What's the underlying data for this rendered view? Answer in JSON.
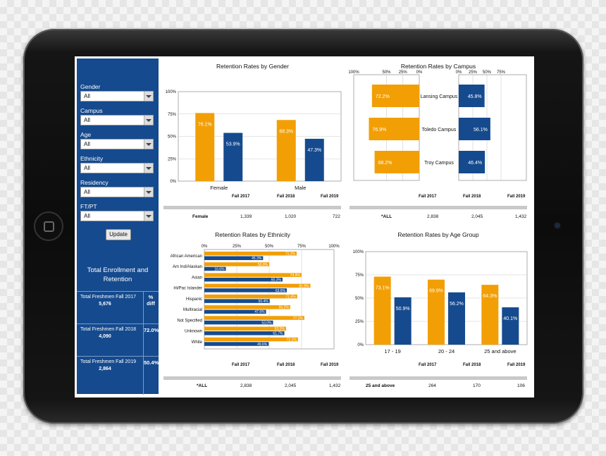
{
  "filters": [
    {
      "label": "Gender",
      "value": "All"
    },
    {
      "label": "Campus",
      "value": "All"
    },
    {
      "label": "Age",
      "value": "All"
    },
    {
      "label": "Ethnicity",
      "value": "All"
    },
    {
      "label": "Residency",
      "value": "All"
    },
    {
      "label": "FT/PT",
      "value": "All"
    }
  ],
  "update_label": "Update",
  "enrollment": {
    "title": "Total Enrollment and Retention",
    "pct_header": "% diff",
    "rows": [
      {
        "label": "Total Freshmen Fall 2017",
        "value": "5,676",
        "pct": ""
      },
      {
        "label": "Total Freshmen Fall 2018",
        "value": "4,090",
        "pct": "72.0%"
      },
      {
        "label": "Total Freshmen Fall 2019",
        "value": "2,864",
        "pct": "50.4%"
      }
    ]
  },
  "colors": {
    "fall2017": "#f29f05",
    "fall2018": "#154a8e",
    "sidebar": "#154a8e"
  },
  "years": [
    "Fall 2017",
    "Fall 2018",
    "Fall 2019"
  ],
  "panels": {
    "gender": {
      "title": "Retention Rates by Gender",
      "footer": {
        "label": "Female",
        "values": [
          "1,339",
          "1,020",
          "722"
        ]
      }
    },
    "campus": {
      "title": "Retention Rates by Campus",
      "footer": {
        "label": "*ALL",
        "values": [
          "2,838",
          "2,045",
          "1,432"
        ]
      }
    },
    "ethnicity": {
      "title": "Retention Rates by Ethnicity",
      "footer": {
        "label": "*ALL",
        "values": [
          "2,838",
          "2,045",
          "1,432"
        ]
      }
    },
    "age": {
      "title": "Retention Rates by Age Group",
      "footer": {
        "label": "25 and above",
        "values": [
          "264",
          "170",
          "106"
        ]
      }
    }
  },
  "chart_data": [
    {
      "type": "bar",
      "title": "Retention Rates by Gender",
      "categories": [
        "Female",
        "Male"
      ],
      "series": [
        {
          "values": [
            76.1,
            68.3
          ],
          "labels": [
            "76.1%",
            "68.3%"
          ]
        },
        {
          "values": [
            53.9,
            47.3
          ],
          "labels": [
            "53.9%",
            "47.3%"
          ]
        }
      ],
      "yticks": [
        "0%",
        "25%",
        "50%",
        "75%",
        "100%"
      ],
      "ylim": [
        0,
        100
      ]
    },
    {
      "type": "bar",
      "title": "Retention Rates by Campus",
      "orientation": "horizontal-mirrored",
      "categories": [
        "Lansing Campus",
        "Toledo Campus",
        "Troy Campus"
      ],
      "series": [
        {
          "values": [
            72.2,
            76.9,
            68.2
          ],
          "labels": [
            "72.2%",
            "76.9%",
            "68.2%"
          ]
        },
        {
          "values": [
            45.8,
            56.1,
            46.4
          ],
          "labels": [
            "45.8%",
            "56.1%",
            "46.4%"
          ]
        }
      ],
      "left_ticks": [
        "100%",
        "50%",
        "25%",
        "0%"
      ],
      "right_ticks": [
        "0%",
        "25%",
        "50%",
        "75%"
      ]
    },
    {
      "type": "bar",
      "title": "Retention Rates by Ethnicity",
      "orientation": "horizontal",
      "categories": [
        "African American",
        "Am Ind/Alaskan",
        "Asian",
        "Hi/Pac Islander",
        "Hispanic",
        "Multiracial",
        "Not Specified",
        "Unknown",
        "White"
      ],
      "series": [
        {
          "values": [
            71.2,
            50.0,
            74.9,
            81.8,
            71.6,
            66.2,
            77.1,
            63.0,
            72.2
          ],
          "labels": [
            "71.2%",
            "50.0%",
            "74.9%",
            "81.8%",
            "71.6%",
            "66.2%",
            "77.1%",
            "63.0%",
            "72.2%"
          ]
        },
        {
          "values": [
            45.3,
            16.6,
            60.3,
            63.6,
            50.4,
            47.6,
            53.0,
            61.7,
            49.6
          ],
          "labels": [
            "45.3%",
            "16.6%",
            "60.3%",
            "63.6%",
            "50.4%",
            "47.6%",
            "53.0%",
            "61.7%",
            "49.6%"
          ]
        }
      ],
      "xticks": [
        "0%",
        "25%",
        "50%",
        "75%",
        "100%"
      ],
      "xlim": [
        0,
        100
      ]
    },
    {
      "type": "bar",
      "title": "Retention Rates by Age Group",
      "categories": [
        "17 - 19",
        "20 - 24",
        "25 and above"
      ],
      "series": [
        {
          "values": [
            73.1,
            69.9,
            64.3
          ],
          "labels": [
            "73.1%",
            "69.9%",
            "64.3%"
          ]
        },
        {
          "values": [
            50.9,
            56.2,
            40.1
          ],
          "labels": [
            "50.9%",
            "56.2%",
            "40.1%"
          ]
        }
      ],
      "yticks": [
        "0%",
        "25%",
        "50%",
        "75%",
        "100%"
      ],
      "ylim": [
        0,
        100
      ]
    }
  ]
}
